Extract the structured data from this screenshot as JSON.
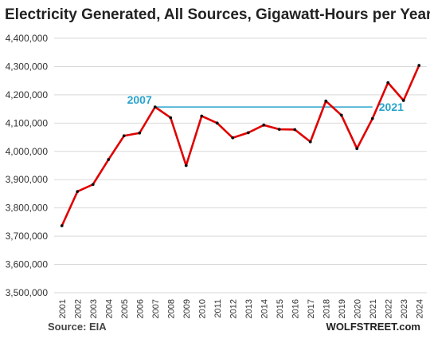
{
  "title": "Electricity Generated, All Sources, Gigawatt-Hours per Year",
  "source": "Source: EIA",
  "brand": "WOLFSTREET.com",
  "chart_data": {
    "type": "line",
    "title": "Electricity Generated, All Sources, Gigawatt-Hours per Year",
    "xlabel": "",
    "ylabel": "",
    "categories": [
      "2001",
      "2002",
      "2003",
      "2004",
      "2005",
      "2006",
      "2007",
      "2008",
      "2009",
      "2010",
      "2011",
      "2012",
      "2013",
      "2014",
      "2015",
      "2016",
      "2017",
      "2018",
      "2019",
      "2020",
      "2021",
      "2022",
      "2023",
      "2024"
    ],
    "series": [
      {
        "values": [
          3737000,
          3858000,
          3883000,
          3971000,
          4055000,
          4065000,
          4157000,
          4119000,
          3950000,
          4125000,
          4100000,
          4048000,
          4066000,
          4093000,
          4078000,
          4077000,
          4034000,
          4178000,
          4128000,
          4010000,
          4116000,
          4243000,
          4180000,
          4304000
        ],
        "color": "#e00000"
      }
    ],
    "ylim": [
      3500000,
      4400000
    ],
    "yticks": [
      3500000,
      3600000,
      3700000,
      3800000,
      3900000,
      4000000,
      4100000,
      4200000,
      4300000,
      4400000
    ],
    "ytick_labels": [
      "3,500,000",
      "3,600,000",
      "3,700,000",
      "3,800,000",
      "3,900,000",
      "4,000,000",
      "4,100,000",
      "4,200,000",
      "4,300,000",
      "4,400,000"
    ],
    "reference_line": {
      "value": 4157000,
      "from": "2007",
      "to": "2021",
      "color": "#29a3cc",
      "start_label": "2007",
      "end_label": "2021"
    },
    "grid": true,
    "colors": {
      "line": "#e00000",
      "marker": "#111111",
      "grid": "#d9d9d9",
      "reference": "#29a3cc"
    }
  }
}
